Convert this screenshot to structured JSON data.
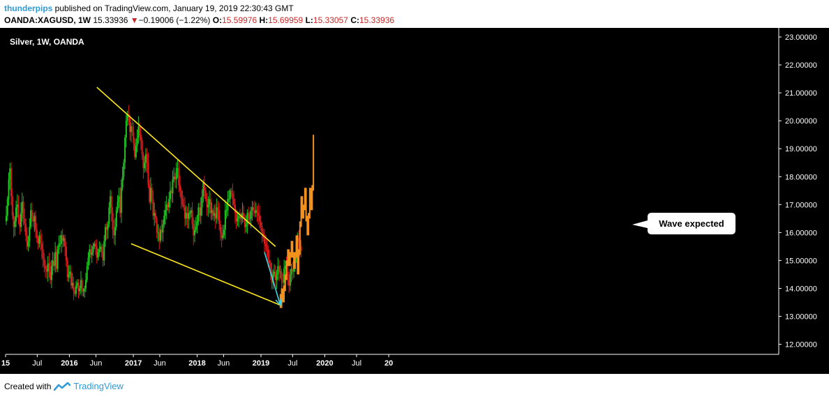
{
  "header": {
    "author": "thunderpips",
    "published_text": "published on TradingView.com, January 19, 2019 22:30:43 GMT",
    "symbol": "OANDA:XAGUSD, 1W",
    "last_price": "15.33936",
    "change_arrow": "▼",
    "change": "−0.19006 (−1.22%)",
    "open_label": "O:",
    "open": "15.59976",
    "high_label": "H:",
    "high": "15.69959",
    "low_label": "L:",
    "low": "15.33057",
    "close_label": "C:",
    "close": "15.33936"
  },
  "footer": {
    "created_with": "Created with",
    "brand": "TradingView"
  },
  "colors": {
    "background": "#000000",
    "up": "#22c322",
    "down": "#e01a1a",
    "projection": "#f5921e",
    "trendline": "#ffe81a",
    "arrow": "#3fd6e8",
    "axis": "#ffffff",
    "text": "#ffffff",
    "callout_bg": "#ffffff",
    "callout_text": "#000000"
  },
  "chart_data": {
    "type": "candlestick",
    "title": "Silver, 1W, OANDA",
    "y_ticks": [
      "12.00000",
      "13.00000",
      "14.00000",
      "15.00000",
      "16.00000",
      "17.00000",
      "18.00000",
      "19.00000",
      "20.00000",
      "21.00000",
      "22.00000",
      "23.00000"
    ],
    "ylim": [
      11.6,
      23.2
    ],
    "x_ticks": [
      {
        "label": "15",
        "date": "2015-01-01",
        "bold": true
      },
      {
        "label": "Jul",
        "date": "2015-07-01",
        "bold": false
      },
      {
        "label": "2016",
        "date": "2016-01-01",
        "bold": true
      },
      {
        "label": "Jun",
        "date": "2016-06-01",
        "bold": false
      },
      {
        "label": "2017",
        "date": "2017-01-01",
        "bold": true
      },
      {
        "label": "Jun",
        "date": "2017-06-01",
        "bold": false
      },
      {
        "label": "2018",
        "date": "2018-01-01",
        "bold": true
      },
      {
        "label": "Jun",
        "date": "2018-06-01",
        "bold": false
      },
      {
        "label": "2019",
        "date": "2019-01-01",
        "bold": true
      },
      {
        "label": "Jul",
        "date": "2019-07-01",
        "bold": false
      },
      {
        "label": "2020",
        "date": "2020-01-01",
        "bold": true
      },
      {
        "label": "Jul",
        "date": "2020-07-01",
        "bold": false
      },
      {
        "label": "20",
        "date": "2021-01-01",
        "bold": true
      }
    ],
    "close_series": {
      "start": "2015-01-05",
      "interval_days": 7,
      "values": [
        16.6,
        17.2,
        17.9,
        18.3,
        17.3,
        16.6,
        16.2,
        16.4,
        16.9,
        17.0,
        16.5,
        16.2,
        16.7,
        17.1,
        16.5,
        16.3,
        15.9,
        15.5,
        15.7,
        16.2,
        16.8,
        16.5,
        16.4,
        16.6,
        16.1,
        15.8,
        15.6,
        15.9,
        15.6,
        15.4,
        15.1,
        14.8,
        14.7,
        14.6,
        14.9,
        14.6,
        14.3,
        14.8,
        15.0,
        14.8,
        15.3,
        14.7,
        15.4,
        15.6,
        15.6,
        15.9,
        15.7,
        15.8,
        15.5,
        15.0,
        14.4,
        14.5,
        14.6,
        14.1,
        14.2,
        13.9,
        13.8,
        14.1,
        14.2,
        13.9,
        14.0,
        14.3,
        13.9,
        13.9,
        14.0,
        14.3,
        14.8,
        15.1,
        15.4,
        15.2,
        15.3,
        15.5,
        15.6,
        15.5,
        15.1,
        15.3,
        15.4,
        15.5,
        15.3,
        15.0,
        15.7,
        16.2,
        16.1,
        16.3,
        16.9,
        17.3,
        16.7,
        16.1,
        15.9,
        16.2,
        16.8,
        17.1,
        17.3,
        16.7,
        17.6,
        18.0,
        18.5,
        19.4,
        20.0,
        20.2,
        20.1,
        19.6,
        19.8,
        19.6,
        19.2,
        18.7,
        19.1,
        19.4,
        19.8,
        19.5,
        19.3,
        18.8,
        18.3,
        18.5,
        18.8,
        18.5,
        17.7,
        17.1,
        17.6,
        17.2,
        16.6,
        16.7,
        16.5,
        16.0,
        16.0,
        15.7,
        16.1,
        16.0,
        16.3,
        16.6,
        16.8,
        17.0,
        16.9,
        17.2,
        17.5,
        17.4,
        17.9,
        18.0,
        17.9,
        18.3,
        18.3,
        17.7,
        17.5,
        17.2,
        17.0,
        16.9,
        16.5,
        16.7,
        16.5,
        16.7,
        16.7,
        16.8,
        16.3,
        15.9,
        16.1,
        16.2,
        16.4,
        16.9,
        16.6,
        16.9,
        17.3,
        17.8,
        17.5,
        17.2,
        16.9,
        17.0,
        17.2,
        16.7,
        16.8,
        16.6,
        16.7,
        16.5,
        16.9,
        16.8,
        16.3,
        16.0,
        15.8,
        15.9,
        16.1,
        16.8,
        16.8,
        17.2,
        17.2,
        17.5,
        17.4,
        17.2,
        17.0,
        16.7,
        16.4,
        16.5,
        16.6,
        16.5,
        16.6,
        16.7,
        16.5,
        16.2,
        16.3,
        16.7,
        16.5,
        16.5,
        16.8,
        16.9,
        16.8,
        16.7,
        16.8,
        16.7,
        16.6,
        16.4,
        16.2,
        16.0,
        15.8,
        15.6,
        15.5,
        15.4,
        15.0,
        14.9,
        14.6,
        14.2,
        14.5,
        14.6,
        14.3,
        14.5,
        14.8,
        14.6,
        14.6,
        14.3,
        14.2,
        14.7,
        14.8,
        14.6,
        14.3,
        14.1,
        14.5,
        14.7,
        14.6,
        14.7,
        15.1,
        15.6,
        15.8,
        15.7,
        15.5,
        15.34
      ]
    },
    "projection_series": {
      "start": "2019-04-22",
      "interval_days": 7,
      "values": [
        13.4,
        13.9,
        13.6,
        14.0,
        14.4,
        14.9,
        15.3,
        14.9,
        15.2,
        15.6,
        15.2,
        14.8,
        15.2,
        15.8,
        14.6,
        15.3,
        16.3,
        17.2,
        16.6,
        16.9,
        17.5,
        16.5,
        16.0,
        16.6,
        17.5,
        16.9,
        17.6,
        19.4
      ]
    },
    "trendlines": [
      {
        "start_date": "2016-06-06",
        "start_value": 21.2,
        "end_date": "2019-03-25",
        "end_value": 15.5
      },
      {
        "start_date": "2016-12-19",
        "start_value": 15.6,
        "end_date": "2019-04-22",
        "end_value": 13.4
      }
    ],
    "arrow": {
      "from_date": "2019-01-21",
      "from_value": 15.3,
      "to_date": "2019-04-22",
      "to_value": 13.4
    },
    "annotation": "Wave expected",
    "grid": false
  }
}
